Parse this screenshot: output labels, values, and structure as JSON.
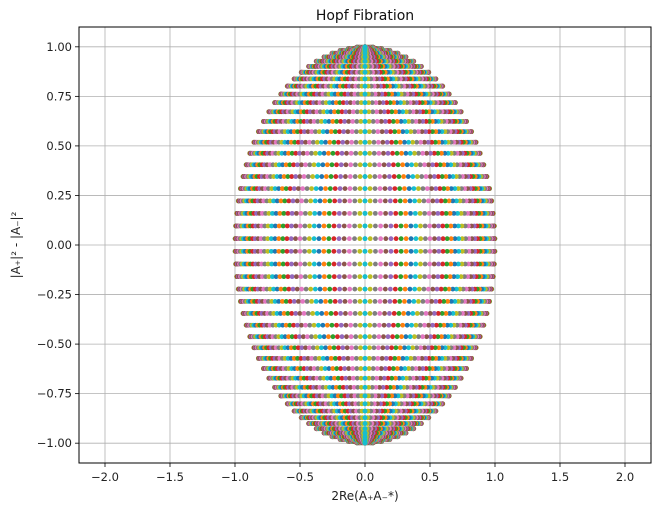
{
  "chart_data": {
    "type": "scatter",
    "title": "Hopf Fibration",
    "xlabel": "2Re(A₊A₋*)",
    "ylabel": "|A₊|² - |A₋|²",
    "xlim": [
      -2.2,
      2.2
    ],
    "ylim": [
      -1.1,
      1.1
    ],
    "grid": true,
    "x_ticks": [
      -2.0,
      -1.5,
      -1.0,
      -0.5,
      0.0,
      0.5,
      1.0,
      1.5,
      2.0
    ],
    "x_tick_labels": [
      "−2.0",
      "−1.5",
      "−1.0",
      "−0.5",
      "0.0",
      "0.5",
      "1.0",
      "1.5",
      "2.0"
    ],
    "y_ticks": [
      -1.0,
      -0.75,
      -0.5,
      -0.25,
      0.0,
      0.25,
      0.5,
      0.75,
      1.0
    ],
    "y_tick_labels": [
      "−1.00",
      "−0.75",
      "−0.50",
      "−0.25",
      "0.00",
      "0.25",
      "0.50",
      "0.75",
      "1.00"
    ],
    "series_generator": {
      "description": "curves x = 2 sin(t) cos(t) cos(phi), y = cos^2(t) - sin^2(t); one colored series per phi",
      "t_range": [
        0,
        1.5707963
      ],
      "points_per_series": 50,
      "phi_range": [
        0,
        1.5707963
      ],
      "series_count": 40
    },
    "palette": [
      "#1f77b4",
      "#ff7f0e",
      "#2ca02c",
      "#d62728",
      "#9467bd",
      "#8c564b",
      "#e377c2",
      "#7f7f7f",
      "#bcbd22",
      "#17becf"
    ]
  }
}
